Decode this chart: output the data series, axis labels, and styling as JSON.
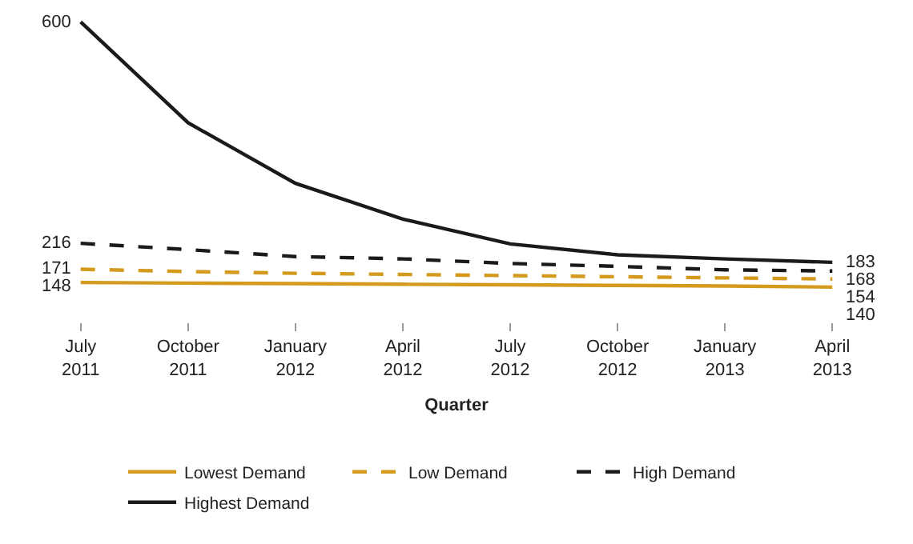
{
  "chart_data": {
    "type": "line",
    "xlabel": "Quarter",
    "categories": [
      "July 2011",
      "October 2011",
      "January 2012",
      "April 2012",
      "July 2012",
      "October 2012",
      "January 2013",
      "April 2013"
    ],
    "legend": "bottom",
    "grid": false,
    "marker": "none",
    "series": [
      {
        "name": "Lowest Demand",
        "color": "#d49a1e",
        "line_style": "solid",
        "values": [
          148,
          147,
          146,
          145,
          144,
          143,
          142,
          140
        ],
        "value_labels": [
          "148",
          null,
          null,
          null,
          null,
          null,
          null,
          "140"
        ]
      },
      {
        "name": "Low Demand",
        "color": "#d49a1e",
        "line_style": "dashed",
        "values": [
          171,
          167,
          164,
          162,
          160,
          158,
          156,
          154
        ],
        "value_labels": [
          "171",
          null,
          null,
          null,
          null,
          null,
          null,
          "154"
        ]
      },
      {
        "name": "High Demand",
        "color": "#1a1a1a",
        "line_style": "dashed",
        "values": [
          216,
          205,
          193,
          189,
          181,
          176,
          170,
          168
        ],
        "value_labels": [
          "216",
          null,
          null,
          null,
          null,
          null,
          null,
          "168"
        ]
      },
      {
        "name": "Highest Demand",
        "color": "#1a1a1a",
        "line_style": "solid",
        "values": [
          600,
          425,
          320,
          258,
          215,
          196,
          189,
          183
        ],
        "value_labels": [
          "600",
          null,
          null,
          null,
          null,
          null,
          null,
          "183"
        ]
      }
    ]
  }
}
